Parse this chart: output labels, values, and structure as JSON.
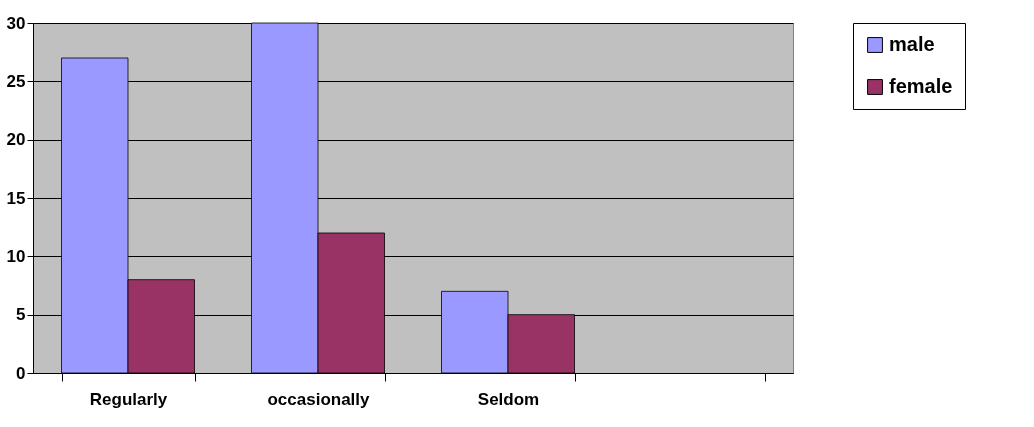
{
  "chart_data": {
    "type": "bar",
    "categories": [
      "Regularly",
      "occasionally",
      "Seldom",
      null
    ],
    "series": [
      {
        "name": "male",
        "color": "#9999ff",
        "values": [
          27,
          30,
          7,
          null
        ]
      },
      {
        "name": "female",
        "color": "#993366",
        "values": [
          8,
          12,
          5,
          null
        ]
      }
    ],
    "ylim": [
      0,
      30
    ],
    "yticks": [
      0,
      5,
      10,
      15,
      20,
      25,
      30
    ],
    "grid": "y",
    "legend": "right"
  }
}
